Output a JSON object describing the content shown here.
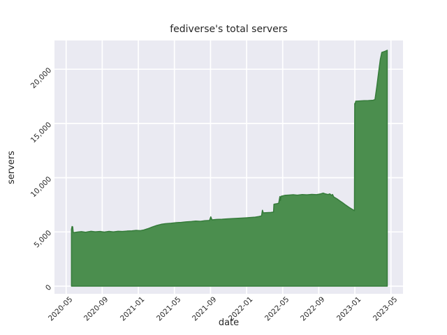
{
  "chart_data": {
    "type": "area",
    "title": "fediverse's total servers",
    "xlabel": "date",
    "ylabel": "servers",
    "grid": true,
    "legend": false,
    "x_tick_labels": [
      "2020-05",
      "2020-09",
      "2021-01",
      "2021-05",
      "2021-09",
      "2022-01",
      "2022-05",
      "2022-09",
      "2023-01",
      "2023-05"
    ],
    "y_ticks": [
      {
        "value": 0,
        "label": "0"
      },
      {
        "value": 5000,
        "label": "5,000"
      },
      {
        "value": 10000,
        "label": "10,000"
      },
      {
        "value": 15000,
        "label": "15,000"
      },
      {
        "value": 20000,
        "label": "20,000"
      }
    ],
    "x_range": [
      "2020-05-19",
      "2023-04-19"
    ],
    "y_max_visible": 22650,
    "colors": {
      "figure_bg": "#ffffff",
      "plot_bg": "#eaeaf2",
      "grid": "#ffffff",
      "fill": "#4b8e4e",
      "line": "#357b3a",
      "text": "#262626"
    },
    "series": [
      {
        "name": "total servers",
        "points": [
          [
            "2020-05-19",
            5250
          ],
          [
            "2020-05-21",
            5500
          ],
          [
            "2020-05-23",
            5470
          ],
          [
            "2020-05-25",
            4930
          ],
          [
            "2020-06-08",
            4990
          ],
          [
            "2020-06-22",
            5030
          ],
          [
            "2020-07-06",
            4970
          ],
          [
            "2020-07-24",
            5060
          ],
          [
            "2020-08-08",
            5010
          ],
          [
            "2020-08-24",
            5040
          ],
          [
            "2020-09-08",
            4990
          ],
          [
            "2020-09-24",
            5050
          ],
          [
            "2020-10-08",
            5000
          ],
          [
            "2020-10-24",
            5060
          ],
          [
            "2020-11-08",
            5040
          ],
          [
            "2020-11-24",
            5080
          ],
          [
            "2020-12-10",
            5100
          ],
          [
            "2020-12-24",
            5140
          ],
          [
            "2021-01-08",
            5120
          ],
          [
            "2021-01-20",
            5180
          ],
          [
            "2021-02-03",
            5300
          ],
          [
            "2021-02-17",
            5450
          ],
          [
            "2021-03-03",
            5600
          ],
          [
            "2021-03-17",
            5700
          ],
          [
            "2021-04-01",
            5760
          ],
          [
            "2021-04-20",
            5800
          ],
          [
            "2021-05-08",
            5860
          ],
          [
            "2021-05-24",
            5880
          ],
          [
            "2021-06-10",
            5930
          ],
          [
            "2021-06-28",
            5960
          ],
          [
            "2021-07-12",
            6000
          ],
          [
            "2021-07-28",
            5980
          ],
          [
            "2021-08-12",
            6030
          ],
          [
            "2021-08-28",
            6060
          ],
          [
            "2021-09-02",
            6390
          ],
          [
            "2021-09-06",
            6110
          ],
          [
            "2021-09-22",
            6150
          ],
          [
            "2021-10-10",
            6170
          ],
          [
            "2021-10-26",
            6200
          ],
          [
            "2021-11-12",
            6230
          ],
          [
            "2021-11-28",
            6250
          ],
          [
            "2021-12-14",
            6270
          ],
          [
            "2021-12-30",
            6300
          ],
          [
            "2022-01-14",
            6330
          ],
          [
            "2022-01-30",
            6360
          ],
          [
            "2022-02-12",
            6420
          ],
          [
            "2022-02-21",
            6480
          ],
          [
            "2022-02-24",
            7000
          ],
          [
            "2022-02-27",
            6760
          ],
          [
            "2022-03-10",
            6780
          ],
          [
            "2022-03-22",
            6800
          ],
          [
            "2022-03-31",
            6830
          ],
          [
            "2022-04-02",
            7550
          ],
          [
            "2022-04-10",
            7590
          ],
          [
            "2022-04-18",
            7640
          ],
          [
            "2022-04-22",
            8260
          ],
          [
            "2022-04-24",
            7900
          ],
          [
            "2022-04-26",
            8290
          ],
          [
            "2022-05-08",
            8370
          ],
          [
            "2022-05-22",
            8400
          ],
          [
            "2022-06-06",
            8430
          ],
          [
            "2022-06-20",
            8390
          ],
          [
            "2022-07-06",
            8450
          ],
          [
            "2022-07-22",
            8420
          ],
          [
            "2022-08-08",
            8460
          ],
          [
            "2022-08-24",
            8440
          ],
          [
            "2022-09-08",
            8510
          ],
          [
            "2022-09-16",
            8580
          ],
          [
            "2022-09-24",
            8500
          ],
          [
            "2022-10-02",
            8450
          ],
          [
            "2022-10-08",
            8510
          ],
          [
            "2022-10-13",
            8380
          ],
          [
            "2022-10-17",
            8450
          ],
          [
            "2022-10-21",
            8230
          ],
          [
            "2022-11-01",
            8060
          ],
          [
            "2022-11-11",
            7870
          ],
          [
            "2022-11-21",
            7680
          ],
          [
            "2022-12-01",
            7470
          ],
          [
            "2022-12-11",
            7280
          ],
          [
            "2022-12-21",
            7110
          ],
          [
            "2022-12-30",
            6960
          ],
          [
            "2022-12-31",
            16840
          ],
          [
            "2023-01-02",
            16790
          ],
          [
            "2023-01-04",
            17050
          ],
          [
            "2023-01-18",
            17080
          ],
          [
            "2023-02-02",
            17100
          ],
          [
            "2023-02-16",
            17110
          ],
          [
            "2023-03-02",
            17140
          ],
          [
            "2023-03-08",
            17200
          ],
          [
            "2023-03-14",
            18350
          ],
          [
            "2023-03-20",
            19650
          ],
          [
            "2023-03-26",
            20900
          ],
          [
            "2023-03-31",
            21550
          ],
          [
            "2023-04-06",
            21600
          ],
          [
            "2023-04-12",
            21660
          ],
          [
            "2023-04-19",
            21750
          ]
        ]
      }
    ]
  }
}
